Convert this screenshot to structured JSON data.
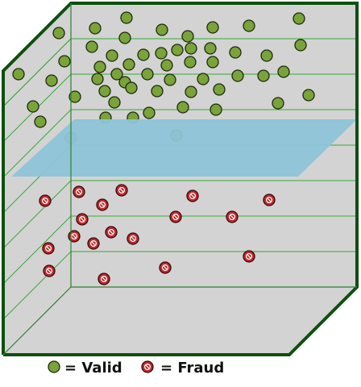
{
  "legend": {
    "valid_label": "= Valid",
    "fraud_label": "= Fraud"
  },
  "colors": {
    "valid_fill": "#7aa33a",
    "fraud_fill": "#c0282d",
    "plane_fill": "#8ec4d8",
    "box_face": "#d3d3d3",
    "box_edge": "#0f4f10",
    "grid_line": "#3aa83a"
  },
  "points": {
    "valid": [
      [
        73,
        41
      ],
      [
        118,
        35
      ],
      [
        157,
        22
      ],
      [
        201,
        37
      ],
      [
        264,
        34
      ],
      [
        309,
        32
      ],
      [
        371,
        23
      ],
      [
        23,
        92
      ],
      [
        64,
        100
      ],
      [
        80,
        76
      ],
      [
        114,
        58
      ],
      [
        155,
        47
      ],
      [
        233,
        45
      ],
      [
        124,
        83
      ],
      [
        139,
        69
      ],
      [
        160,
        80
      ],
      [
        178,
        68
      ],
      [
        200,
        66
      ],
      [
        220,
        62
      ],
      [
        237,
        60
      ],
      [
        261,
        60
      ],
      [
        292,
        65
      ],
      [
        331,
        69
      ],
      [
        373,
        56
      ],
      [
        121,
        98
      ],
      [
        145,
        92
      ],
      [
        155,
        102
      ],
      [
        183,
        92
      ],
      [
        207,
        81
      ],
      [
        236,
        77
      ],
      [
        264,
        77
      ],
      [
        211,
        99
      ],
      [
        252,
        98
      ],
      [
        295,
        94
      ],
      [
        327,
        94
      ],
      [
        352,
        89
      ],
      [
        41,
        132
      ],
      [
        50,
        151
      ],
      [
        93,
        120
      ],
      [
        130,
        113
      ],
      [
        142,
        127
      ],
      [
        163,
        109
      ],
      [
        195,
        113
      ],
      [
        237,
        114
      ],
      [
        272,
        111
      ],
      [
        383,
        118
      ],
      [
        345,
        128
      ],
      [
        131,
        146
      ],
      [
        165,
        146
      ],
      [
        185,
        140
      ],
      [
        227,
        133
      ],
      [
        268,
        136
      ],
      [
        88,
        171
      ],
      [
        219,
        168
      ]
    ],
    "fraud": [
      [
        56,
        249
      ],
      [
        98,
        238
      ],
      [
        151,
        236
      ],
      [
        127,
        254
      ],
      [
        239,
        243
      ],
      [
        334,
        248
      ],
      [
        102,
        272
      ],
      [
        218,
        269
      ],
      [
        288,
        269
      ],
      [
        92,
        293
      ],
      [
        138,
        288
      ],
      [
        165,
        296
      ],
      [
        116,
        302
      ],
      [
        60,
        308
      ],
      [
        309,
        318
      ],
      [
        61,
        336
      ],
      [
        205,
        332
      ],
      [
        129,
        346
      ]
    ]
  }
}
